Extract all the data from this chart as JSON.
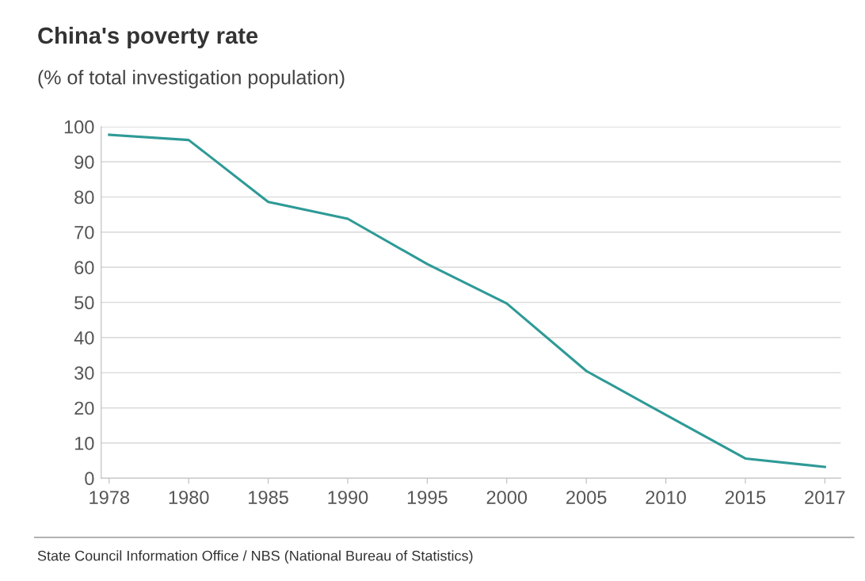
{
  "chart_data": {
    "type": "line",
    "title": "China's poverty rate",
    "subtitle": "(% of total investigation population)",
    "categories": [
      "1978",
      "1980",
      "1985",
      "1990",
      "1995",
      "2000",
      "2005",
      "2010",
      "2015",
      "2017"
    ],
    "series": [
      {
        "color": "#2e9a97",
        "values": [
          97.7,
          96.2,
          78.6,
          73.8,
          60.9,
          49.7,
          30.5,
          18.0,
          5.6,
          3.2
        ]
      }
    ],
    "ylim": [
      0,
      100
    ],
    "yticks": [
      0,
      10,
      20,
      30,
      40,
      50,
      60,
      70,
      80,
      90,
      100
    ],
    "grid": "y",
    "marker": "none",
    "line_style": "solid",
    "annotations": [
      "State Council Information Office / NBS (National Bureau of Statistics)"
    ]
  }
}
